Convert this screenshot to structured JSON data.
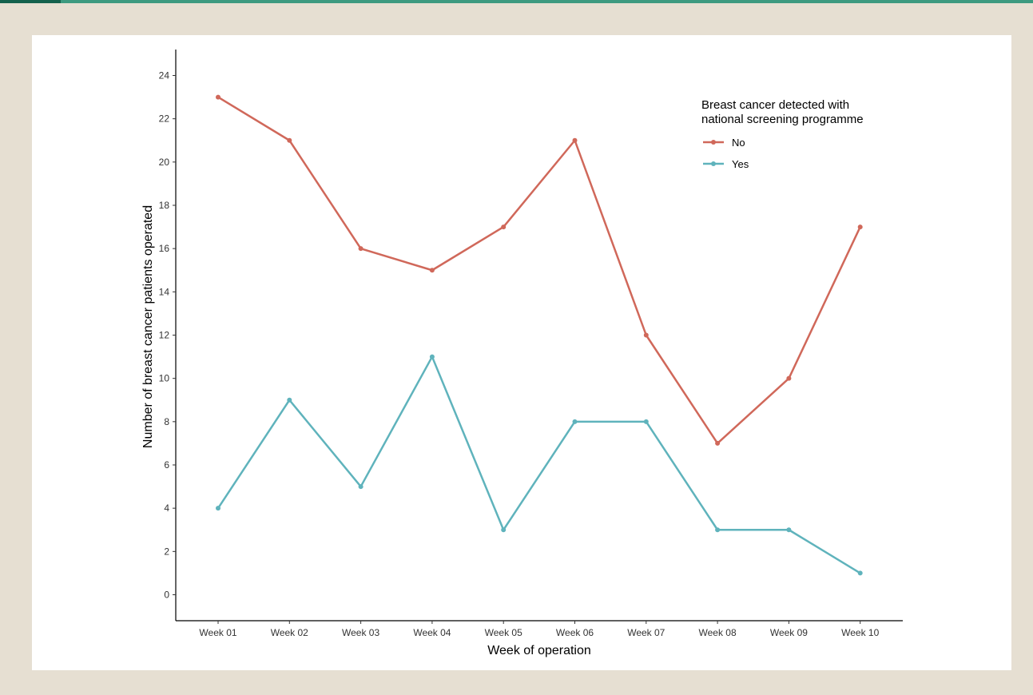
{
  "chart_data": {
    "type": "line",
    "title": "",
    "xlabel": "Week of operation",
    "ylabel": "Number of breast cancer patients operated",
    "categories": [
      "Week 01",
      "Week 02",
      "Week 03",
      "Week 04",
      "Week 05",
      "Week 06",
      "Week 07",
      "Week 08",
      "Week 09",
      "Week 10"
    ],
    "ylim": [
      -1.2,
      25.2
    ],
    "yticks": [
      0,
      2,
      4,
      6,
      8,
      10,
      12,
      14,
      16,
      18,
      20,
      22,
      24
    ],
    "grid": false,
    "legend": {
      "title": "Breast cancer detected with national screening programme",
      "title_lines": [
        "Breast cancer detected with",
        "national screening programme"
      ],
      "placement": "top-right"
    },
    "series": [
      {
        "name": "No",
        "color": "#d0685a",
        "values": [
          23,
          21,
          16,
          15,
          17,
          21,
          12,
          7,
          10,
          17
        ]
      },
      {
        "name": "Yes",
        "color": "#5fb3bc",
        "values": [
          4,
          9,
          5,
          11,
          3,
          8,
          8,
          3,
          3,
          1
        ]
      }
    ]
  }
}
